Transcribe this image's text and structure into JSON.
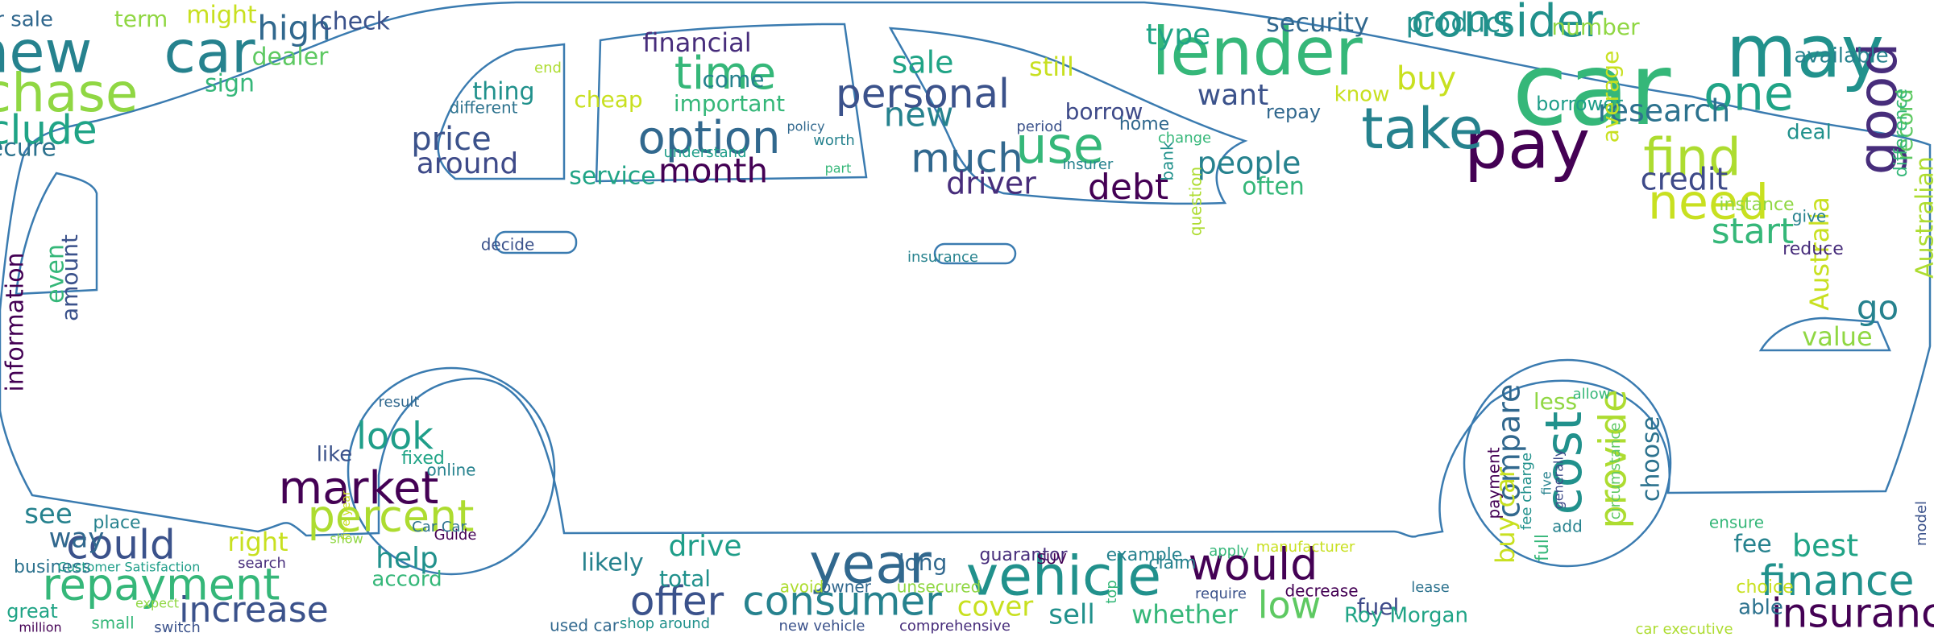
{
  "words": [
    "car",
    "may",
    "lender",
    "consider",
    "pay",
    "take",
    "find",
    "one",
    "good",
    "need",
    "start",
    "research",
    "security",
    "product",
    "number",
    "type",
    "buy",
    "want",
    "know",
    "people",
    "often",
    "credit",
    "repay",
    "borrower",
    "average",
    "available",
    "deal",
    "record",
    "value",
    "go",
    "Australian",
    "Australia",
    "difference",
    "reduce",
    "give",
    "instance",
    "new",
    "car",
    "purchase",
    "include",
    "high",
    "check",
    "might",
    "dealer",
    "sign",
    "secure",
    "term",
    "car sale",
    "information",
    "even",
    "amount",
    "time",
    "option",
    "month",
    "price",
    "around",
    "financial",
    "come",
    "important",
    "service",
    "cheap",
    "thing",
    "different",
    "end",
    "policy",
    "worth",
    "part",
    "understand",
    "personal",
    "use",
    "much",
    "sale",
    "still",
    "new",
    "driver",
    "debt",
    "borrow",
    "bank",
    "question",
    "home",
    "change",
    "insurer",
    "period",
    "decide",
    "insurance",
    "market",
    "percent",
    "look",
    "help",
    "like",
    "accord",
    "fixed",
    "online",
    "result",
    "Guide",
    "Car Car",
    "five year",
    "show",
    "cost",
    "provide",
    "compare",
    "choose",
    "buy car",
    "less",
    "allow",
    "payment",
    "circumstance",
    "five",
    "fee charge",
    "generally",
    "full",
    "add",
    "vehicle",
    "year",
    "would",
    "offer",
    "consumer",
    "low",
    "drive",
    "likely",
    "cover",
    "sell",
    "whether",
    "fuel",
    "Roy Morgan",
    "long",
    "total",
    "guarantor",
    "example",
    "apply",
    "manufacturer",
    "decrease",
    "used car",
    "shop around",
    "new vehicle",
    "comprehensive",
    "avoid",
    "owner",
    "unsecured",
    "lease",
    "require",
    "claim",
    "top",
    "SUV",
    "repayment",
    "could",
    "way",
    "see",
    "increase",
    "right",
    "business",
    "great",
    "place",
    "search",
    "Customer Satisfaction",
    "switch",
    "small",
    "million",
    "expect",
    "finance",
    "insurance",
    "best",
    "fee",
    "choice",
    "able",
    "ensure",
    "model",
    "car executive"
  ]
}
